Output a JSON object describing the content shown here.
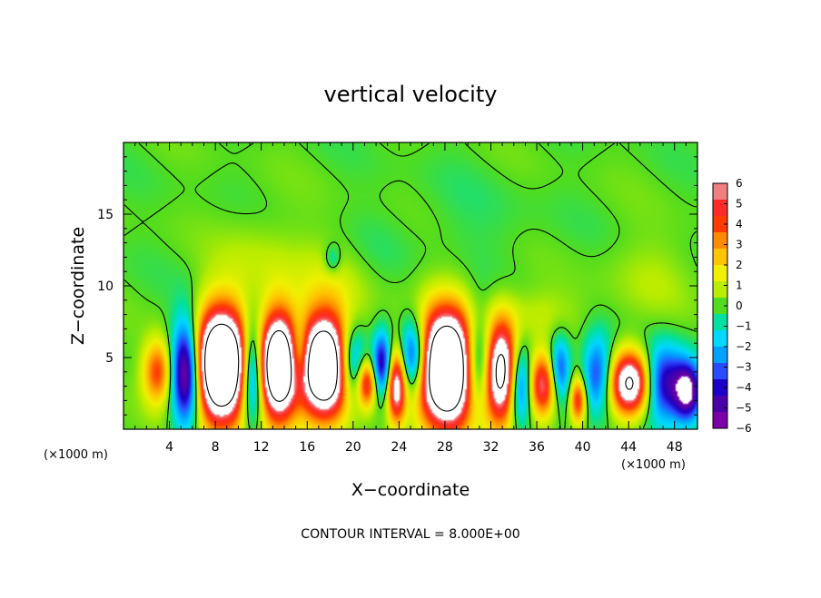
{
  "chart_data": {
    "type": "heatmap",
    "title": "vertical velocity",
    "xlabel": "X−coordinate",
    "ylabel": "Z−coordinate",
    "x_unit_label": "(×1000 m)",
    "x_unit_label_right": "(×1000 m)",
    "xlim": [
      0,
      50
    ],
    "ylim": [
      0,
      20
    ],
    "x_ticks": [
      4,
      8,
      12,
      16,
      20,
      24,
      28,
      32,
      36,
      40,
      44,
      48
    ],
    "y_ticks": [
      5,
      10,
      15
    ],
    "x_tick_labels": [
      "4",
      "8",
      "12",
      "16",
      "20",
      "24",
      "28",
      "32",
      "36",
      "40",
      "44",
      "48"
    ],
    "y_tick_labels": [
      "5",
      "10",
      "15"
    ],
    "footer": "CONTOUR INTERVAL = 8.000E+00",
    "colorbar": {
      "range": [
        -6,
        6
      ],
      "tick_labels": [
        "6",
        "5",
        "4",
        "3",
        "2",
        "1",
        "0",
        "−1",
        "−2",
        "−3",
        "−4",
        "−5",
        "−6"
      ],
      "colors": [
        "#f08080",
        "#ff2a2a",
        "#ff3c00",
        "#ff8a00",
        "#ffc400",
        "#f0f000",
        "#b8ec00",
        "#52dc1e",
        "#00e0a0",
        "#00d8ff",
        "#00a0ff",
        "#2a4cff",
        "#1c00c8",
        "#4c00a8",
        "#7a00a8"
      ]
    },
    "updrafts": [
      {
        "x": 3.0,
        "z": 4.0,
        "w": 1.3,
        "h": 2.2,
        "amp": 4.5
      },
      {
        "x": 8.5,
        "z": 4.4,
        "w": 2.4,
        "h": 3.8,
        "amp": 14
      },
      {
        "x": 13.5,
        "z": 4.4,
        "w": 1.6,
        "h": 3.6,
        "amp": 12
      },
      {
        "x": 17.5,
        "z": 4.4,
        "w": 2.4,
        "h": 3.5,
        "amp": 13
      },
      {
        "x": 21.2,
        "z": 3.2,
        "w": 0.8,
        "h": 1.6,
        "amp": 5
      },
      {
        "x": 23.8,
        "z": 3.0,
        "w": 0.8,
        "h": 2.5,
        "amp": 7
      },
      {
        "x": 28.2,
        "z": 4.2,
        "w": 2.6,
        "h": 3.9,
        "amp": 14
      },
      {
        "x": 32.8,
        "z": 4.0,
        "w": 1.6,
        "h": 3.4,
        "amp": 10
      },
      {
        "x": 36.5,
        "z": 3.0,
        "w": 1.2,
        "h": 2.2,
        "amp": 6
      },
      {
        "x": 39.6,
        "z": 2.0,
        "w": 0.7,
        "h": 1.6,
        "amp": 5
      },
      {
        "x": 44.2,
        "z": 3.2,
        "w": 1.8,
        "h": 2.2,
        "amp": 9
      }
    ],
    "downdrafts": [
      {
        "x": 5.5,
        "z": 4.0,
        "w": 1.3,
        "h": 3.6,
        "amp": -8
      },
      {
        "x": 11.2,
        "z": 4.0,
        "w": 1.0,
        "h": 3.4,
        "amp": -7
      },
      {
        "x": 15.3,
        "z": 5.0,
        "w": 0.9,
        "h": 2.4,
        "amp": -5
      },
      {
        "x": 19.8,
        "z": 4.6,
        "w": 1.3,
        "h": 2.6,
        "amp": -6
      },
      {
        "x": 22.5,
        "z": 4.5,
        "w": 0.8,
        "h": 2.2,
        "amp": -5
      },
      {
        "x": 25.3,
        "z": 5.0,
        "w": 1.2,
        "h": 2.6,
        "amp": -6
      },
      {
        "x": 31.0,
        "z": 4.5,
        "w": 1.4,
        "h": 3.2,
        "amp": -7
      },
      {
        "x": 34.5,
        "z": 3.2,
        "w": 1.0,
        "h": 2.8,
        "amp": -5
      },
      {
        "x": 38.0,
        "z": 4.2,
        "w": 0.9,
        "h": 2.2,
        "amp": -4
      },
      {
        "x": 41.3,
        "z": 3.8,
        "w": 1.3,
        "h": 2.6,
        "amp": -4
      },
      {
        "x": 47.0,
        "z": 3.2,
        "w": 2.0,
        "h": 2.6,
        "amp": -5
      },
      {
        "x": 49.2,
        "z": 2.6,
        "w": 1.2,
        "h": 2.0,
        "amp": -6
      }
    ],
    "upper_features": [
      {
        "x": 11.5,
        "z": 11.5,
        "w": 3.5,
        "h": 3.5,
        "amp": 0.8
      },
      {
        "x": 18.5,
        "z": 10.5,
        "w": 5.0,
        "h": 3.0,
        "amp": 0.9
      },
      {
        "x": 36.0,
        "z": 8.0,
        "w": 4.0,
        "h": 1.8,
        "amp": 1.0
      },
      {
        "x": 46.0,
        "z": 10.5,
        "w": 4.0,
        "h": 3.0,
        "amp": 0.7
      },
      {
        "x": 18.2,
        "z": 11.8,
        "w": 0.7,
        "h": 1.0,
        "amp": -1.6
      },
      {
        "x": 22.0,
        "z": 12.0,
        "w": 3.0,
        "h": 3.0,
        "amp": -0.4
      },
      {
        "x": 30.0,
        "z": 14.0,
        "w": 6.0,
        "h": 4.0,
        "amp": -0.3
      }
    ]
  }
}
